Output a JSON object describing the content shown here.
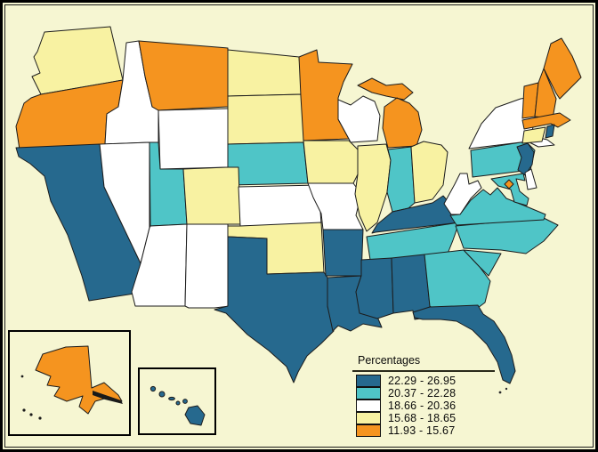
{
  "frame": {
    "background": "#f6f6d2",
    "border_color": "#000000"
  },
  "legend": {
    "title": "Percentages"
  },
  "chart_data": {
    "type": "choropleth",
    "title": "Percentages",
    "legend_position": "bottom-right",
    "bins": [
      "22.29 - 26.95",
      "20.37 - 22.28",
      "18.66 - 20.36",
      "15.68 - 18.65",
      "11.93 - 15.67"
    ],
    "bin_ranges": [
      [
        22.29,
        26.95
      ],
      [
        20.37,
        22.28
      ],
      [
        18.66,
        20.36
      ],
      [
        15.68,
        18.65
      ],
      [
        11.93,
        15.67
      ]
    ],
    "bin_colors": [
      "#26698e",
      "#4fc5c7",
      "#ffffff",
      "#f8f2a2",
      "#f5941f"
    ],
    "map_background": "#f6f6d2",
    "state_outline_color": "#1c1c1c",
    "state_bin": {
      "WA": 3,
      "OR": 4,
      "CA": 0,
      "NV": 2,
      "ID": 2,
      "MT": 4,
      "WY": 2,
      "UT": 1,
      "CO": 3,
      "AZ": 2,
      "NM": 2,
      "ND": 3,
      "SD": 3,
      "NE": 1,
      "KS": 2,
      "OK": 3,
      "TX": 0,
      "MN": 4,
      "IA": 3,
      "MO": 2,
      "AR": 0,
      "LA": 0,
      "WI": 2,
      "IL": 3,
      "MI": 4,
      "IN": 1,
      "OH": 3,
      "KY": 0,
      "TN": 1,
      "MS": 0,
      "AL": 0,
      "GA": 1,
      "FL": 0,
      "SC": 1,
      "NC": 1,
      "VA": 1,
      "WV": 2,
      "PA": 1,
      "NY": 2,
      "NJ": 0,
      "MD": 1,
      "DE": 2,
      "DC": 4,
      "VT": 4,
      "NH": 4,
      "ME": 4,
      "MA": 4,
      "CT": 3,
      "RI": 0,
      "AK": 4,
      "HI": 0
    },
    "insets": [
      "Alaska",
      "Hawaii"
    ]
  }
}
